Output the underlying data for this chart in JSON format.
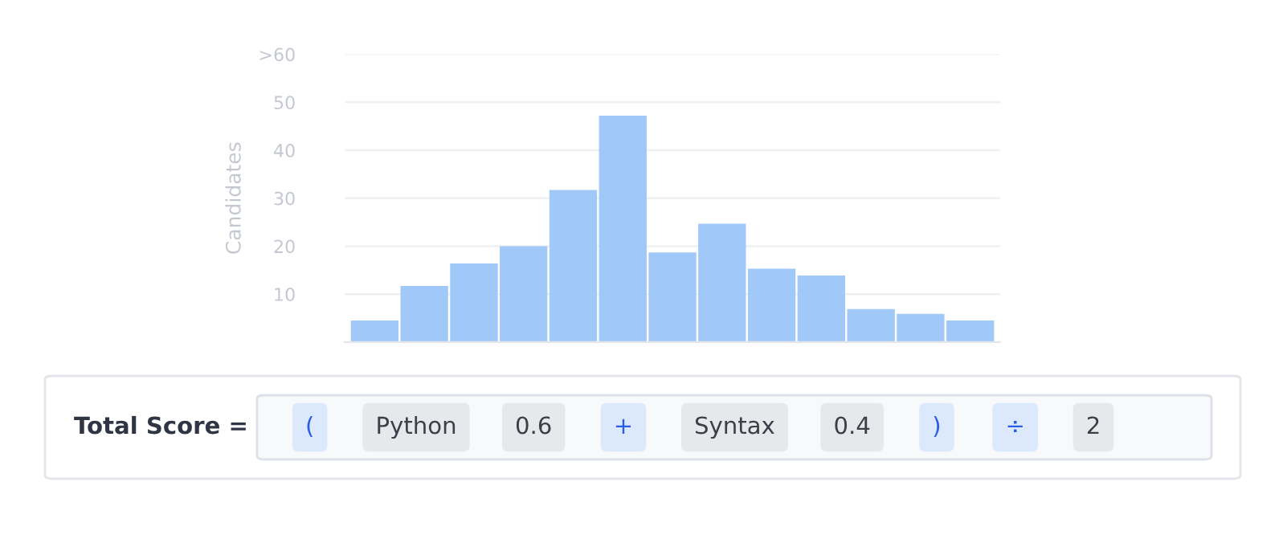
{
  "chart_data": {
    "type": "bar",
    "ylabel": "Candidates",
    "categories": [
      null,
      null,
      null,
      null,
      null,
      null,
      null,
      null,
      null,
      null,
      null,
      null,
      null
    ],
    "values": [
      4.5,
      11.7,
      16.4,
      20,
      31.7,
      47.2,
      18.7,
      24.7,
      15.3,
      13.9,
      6.9,
      5.9,
      4.5
    ],
    "color": "#a0c8f8",
    "ylim": [
      0,
      60
    ],
    "yticks": [
      10,
      20,
      30,
      40,
      50,
      {
        "value": 60,
        "label": ">60"
      }
    ],
    "grid": "y",
    "annotations": [
      "Total Score =",
      "(",
      "Python",
      "0.6",
      "+",
      "Syntax",
      "0.4",
      ")",
      "÷",
      "2"
    ]
  }
}
